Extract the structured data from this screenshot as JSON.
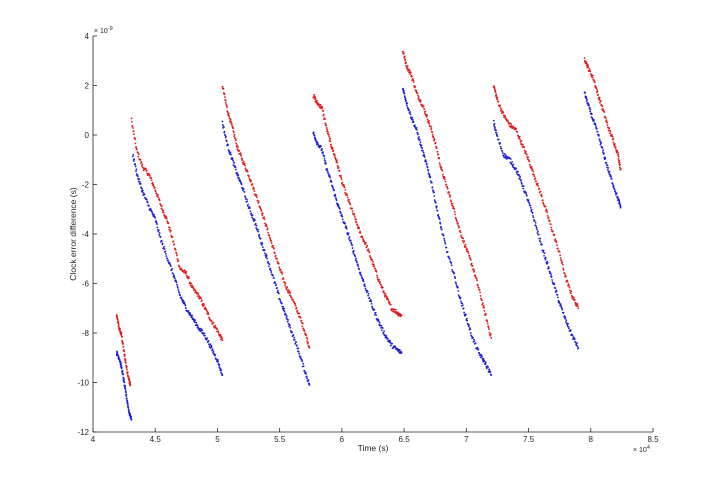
{
  "chart_data": {
    "type": "scatter",
    "title": "",
    "xlabel": "Time (s)",
    "ylabel": "Clock error difference (s)",
    "x_exponent_label": "× 10",
    "x_exponent_power": "4",
    "y_exponent_label": "× 10",
    "y_exponent_power": "-9",
    "xlim": [
      4.0,
      8.5
    ],
    "ylim": [
      -12,
      4
    ],
    "x_ticks": [
      4,
      4.5,
      5,
      5.5,
      6,
      6.5,
      7,
      7.5,
      8,
      8.5
    ],
    "x_tick_labels": [
      "4",
      "4.5",
      "5",
      "5.5",
      "6",
      "6.5",
      "7",
      "7.5",
      "8",
      "8.5"
    ],
    "y_ticks": [
      -12,
      -10,
      -8,
      -6,
      -4,
      -2,
      0,
      2,
      4
    ],
    "y_tick_labels": [
      "-12",
      "-10",
      "-8",
      "-6",
      "-4",
      "-2",
      "0",
      "2",
      "4"
    ],
    "grid": false,
    "colors": {
      "red_series": "#e31a1c",
      "blue_series": "#1f1fd6",
      "axis": "#262626"
    },
    "series": [
      {
        "color": "red",
        "segments": [
          {
            "x": [
              4.19,
              4.21,
              4.23,
              4.25,
              4.27,
              4.29,
              4.3
            ],
            "y": [
              -7.3,
              -7.8,
              -8.1,
              -8.8,
              -9.4,
              -9.9,
              -10.1
            ]
          },
          {
            "x": [
              4.31,
              4.35,
              4.4,
              4.45,
              4.5,
              4.55,
              4.6,
              4.65,
              4.7,
              4.75,
              4.8,
              4.85,
              4.9,
              4.95,
              5.0,
              5.04
            ],
            "y": [
              0.6,
              -0.6,
              -1.3,
              -1.6,
              -2.2,
              -2.9,
              -3.5,
              -4.4,
              -5.4,
              -5.6,
              -6.2,
              -6.5,
              -7.0,
              -7.5,
              -7.9,
              -8.3
            ]
          },
          {
            "x": [
              5.04,
              5.08,
              5.12,
              5.16,
              5.2,
              5.25,
              5.3,
              5.35,
              5.4,
              5.45,
              5.5,
              5.55,
              5.6,
              5.65,
              5.7,
              5.74
            ],
            "y": [
              2.0,
              1.0,
              0.3,
              -0.5,
              -1.0,
              -1.6,
              -2.3,
              -3.0,
              -3.8,
              -4.6,
              -5.4,
              -6.1,
              -6.6,
              -7.2,
              -7.9,
              -8.6
            ]
          },
          {
            "x": [
              5.77,
              5.8,
              5.84,
              5.88,
              5.92,
              5.96,
              6.0,
              6.05,
              6.1,
              6.15,
              6.2,
              6.25,
              6.3,
              6.35,
              6.4,
              6.45,
              6.48
            ],
            "y": [
              1.6,
              1.3,
              1.1,
              0.2,
              -0.5,
              -1.1,
              -1.9,
              -2.6,
              -3.3,
              -4.0,
              -4.5,
              -5.2,
              -5.9,
              -6.5,
              -7.0,
              -7.2,
              -7.3
            ]
          },
          {
            "x": [
              6.49,
              6.52,
              6.56,
              6.6,
              6.64,
              6.68,
              6.72,
              6.76,
              6.8,
              6.85,
              6.9,
              6.95,
              7.0,
              7.05,
              7.1,
              7.15,
              7.2
            ],
            "y": [
              3.4,
              2.8,
              2.4,
              1.7,
              1.3,
              0.8,
              0.2,
              -0.5,
              -1.4,
              -2.2,
              -3.0,
              -3.9,
              -4.6,
              -5.3,
              -6.2,
              -7.2,
              -8.2
            ]
          },
          {
            "x": [
              7.22,
              7.25,
              7.3,
              7.35,
              7.4,
              7.45,
              7.5,
              7.55,
              7.6,
              7.65,
              7.7,
              7.75,
              7.8,
              7.85,
              7.9
            ],
            "y": [
              2.0,
              1.4,
              0.8,
              0.4,
              0.2,
              -0.4,
              -1.0,
              -1.7,
              -2.4,
              -3.2,
              -4.0,
              -4.8,
              -5.8,
              -6.5,
              -7.0
            ]
          },
          {
            "x": [
              7.95,
              7.98,
              8.02,
              8.06,
              8.1,
              8.14,
              8.18,
              8.22,
              8.24
            ],
            "y": [
              3.1,
              2.7,
              2.3,
              1.6,
              1.0,
              0.3,
              -0.2,
              -0.8,
              -1.4
            ]
          }
        ]
      },
      {
        "color": "blue",
        "segments": [
          {
            "x": [
              4.19,
              4.21,
              4.23,
              4.25,
              4.27,
              4.29,
              4.31
            ],
            "y": [
              -8.8,
              -9.0,
              -9.4,
              -10.0,
              -10.6,
              -11.2,
              -11.5
            ]
          },
          {
            "x": [
              4.32,
              4.36,
              4.4,
              4.45,
              4.5,
              4.55,
              4.6,
              4.65,
              4.7,
              4.75,
              4.8,
              4.85,
              4.9,
              4.95,
              5.0,
              5.04
            ],
            "y": [
              -0.8,
              -1.7,
              -2.3,
              -2.9,
              -3.4,
              -4.3,
              -5.0,
              -5.7,
              -6.5,
              -7.0,
              -7.4,
              -7.8,
              -8.1,
              -8.6,
              -9.1,
              -9.7
            ]
          },
          {
            "x": [
              5.04,
              5.08,
              5.12,
              5.16,
              5.2,
              5.25,
              5.3,
              5.35,
              5.4,
              5.45,
              5.5,
              5.55,
              5.6,
              5.65,
              5.7,
              5.74
            ],
            "y": [
              0.5,
              -0.4,
              -1.0,
              -1.6,
              -2.1,
              -2.9,
              -3.5,
              -4.3,
              -5.0,
              -5.8,
              -6.6,
              -7.3,
              -8.0,
              -8.7,
              -9.5,
              -10.1
            ]
          },
          {
            "x": [
              5.77,
              5.8,
              5.84,
              5.88,
              5.92,
              5.96,
              6.0,
              6.05,
              6.1,
              6.15,
              6.2,
              6.25,
              6.3,
              6.35,
              6.4,
              6.45,
              6.48
            ],
            "y": [
              0.1,
              -0.3,
              -0.6,
              -1.4,
              -2.0,
              -2.7,
              -3.3,
              -4.0,
              -4.8,
              -5.6,
              -6.3,
              -7.0,
              -7.6,
              -8.1,
              -8.5,
              -8.7,
              -8.8
            ]
          },
          {
            "x": [
              6.49,
              6.52,
              6.56,
              6.6,
              6.64,
              6.68,
              6.72,
              6.76,
              6.8,
              6.85,
              6.9,
              6.95,
              7.0,
              7.05,
              7.1,
              7.15,
              7.2
            ],
            "y": [
              1.9,
              1.3,
              0.7,
              0.2,
              -0.5,
              -1.2,
              -1.9,
              -2.9,
              -3.8,
              -4.8,
              -5.6,
              -6.6,
              -7.4,
              -8.2,
              -8.8,
              -9.2,
              -9.7
            ]
          },
          {
            "x": [
              7.22,
              7.25,
              7.3,
              7.35,
              7.4,
              7.45,
              7.5,
              7.55,
              7.6,
              7.65,
              7.7,
              7.75,
              7.8,
              7.85,
              7.9
            ],
            "y": [
              0.5,
              -0.1,
              -0.8,
              -1.0,
              -1.4,
              -2.0,
              -2.7,
              -3.5,
              -4.4,
              -5.2,
              -6.0,
              -6.8,
              -7.5,
              -8.1,
              -8.6
            ]
          },
          {
            "x": [
              7.95,
              7.98,
              8.02,
              8.06,
              8.1,
              8.14,
              8.18,
              8.22,
              8.24
            ],
            "y": [
              1.7,
              1.2,
              0.6,
              0.0,
              -0.7,
              -1.4,
              -2.0,
              -2.6,
              -2.9
            ]
          }
        ]
      }
    ]
  }
}
